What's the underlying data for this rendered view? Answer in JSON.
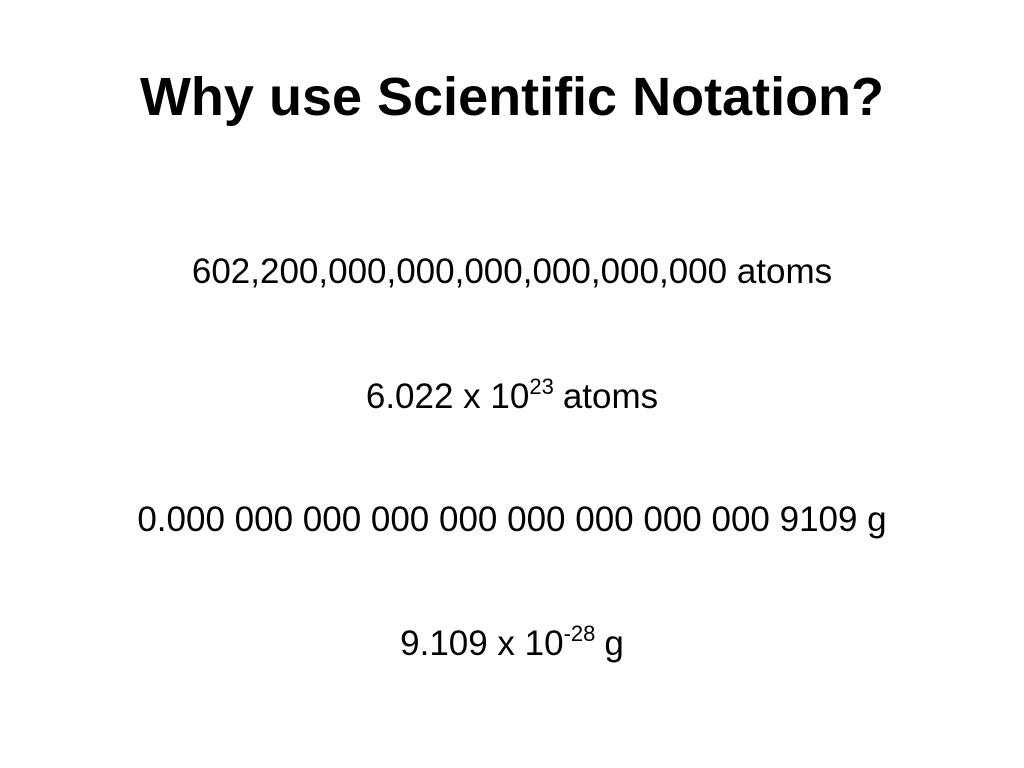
{
  "slide": {
    "title": "Why use Scientific Notation?",
    "lines": [
      {
        "text": "602,200,000,000,000,000,000,000 atoms"
      },
      {
        "base": "6.022 x 10",
        "sup": "23",
        "tail": "atoms"
      },
      {
        "text": "0.000 000 000 000 000 000 000 000 000 9109 g"
      },
      {
        "base": "9.109 x 10",
        "sup": "-28",
        "tail": "g"
      }
    ]
  }
}
